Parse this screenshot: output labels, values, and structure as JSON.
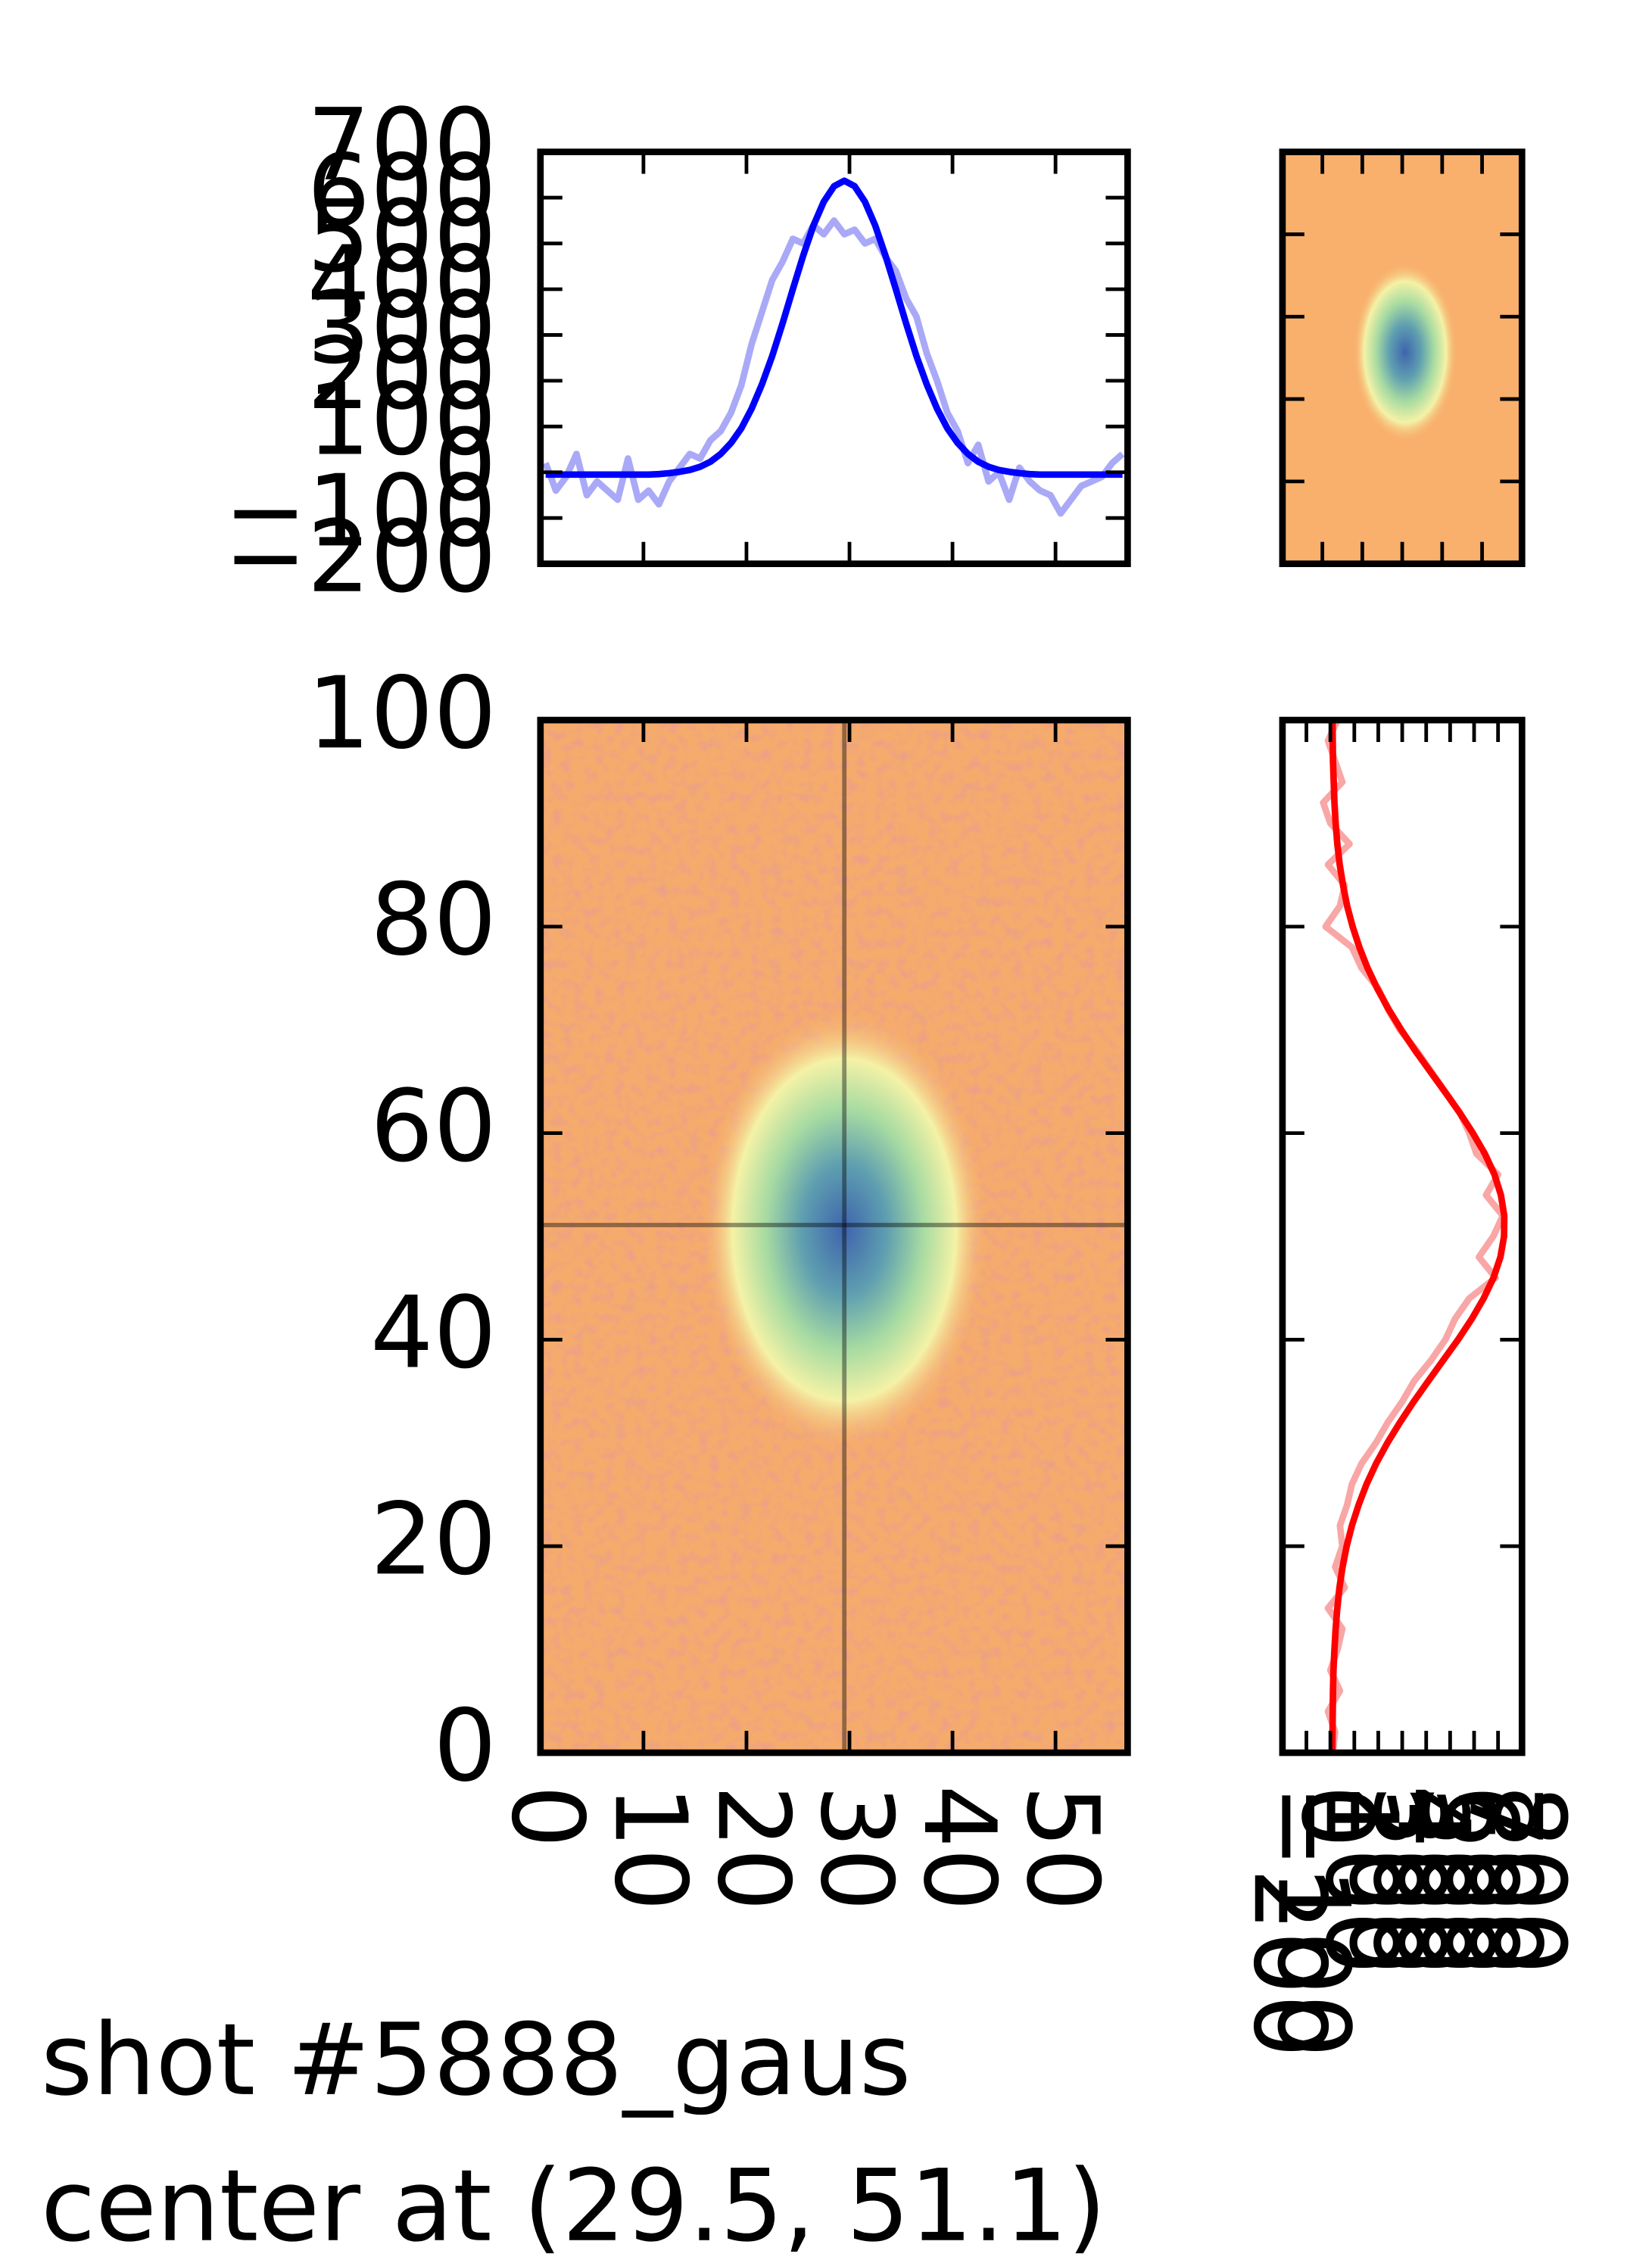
{
  "chart_data": [
    {
      "type": "heatmap",
      "annotation": [
        "shot #5888_gaus",
        "center at (29.5, 51.1)"
      ],
      "center_x": 29.5,
      "center_y": 51.1,
      "xlim": [
        0,
        57
      ],
      "ylim": [
        0,
        100
      ],
      "xticks": [
        0,
        10,
        20,
        30,
        40,
        50
      ],
      "yticks": [
        0,
        20,
        40,
        60,
        80,
        100
      ]
    },
    {
      "type": "line",
      "x": [
        0.5,
        1.5,
        2.5,
        3.5,
        4.5,
        5.5,
        6.5,
        7.5,
        8.5,
        9.5,
        10.5,
        11.5,
        12.5,
        13.5,
        14.5,
        15.5,
        16.5,
        17.5,
        18.5,
        19.5,
        20.5,
        21.5,
        22.5,
        23.5,
        24.5,
        25.5,
        26.5,
        27.5,
        28.5,
        29.5,
        30.5,
        31.5,
        32.5,
        33.5,
        34.5,
        35.5,
        36.5,
        37.5,
        38.5,
        39.5,
        40.5,
        41.5,
        42.5,
        43.5,
        44.5,
        45.5,
        46.5,
        47.5,
        48.5,
        49.5,
        50.5,
        51.5,
        52.5,
        53.5,
        54.5,
        55.5,
        56.5
      ],
      "series": [
        {
          "color": "#a9a9f7",
          "values": [
            20,
            -40,
            -10,
            40,
            -50,
            -20,
            -40,
            -60,
            30,
            -60,
            -40,
            -70,
            -20,
            10,
            40,
            30,
            70,
            90,
            130,
            190,
            280,
            350,
            420,
            460,
            510,
            500,
            540,
            520,
            550,
            520,
            530,
            500,
            510,
            470,
            440,
            380,
            340,
            260,
            200,
            130,
            90,
            20,
            60,
            -20,
            0,
            -60,
            10,
            -20,
            -40,
            -50,
            -90,
            -60,
            -30,
            -20,
            -10,
            20,
            40
          ]
        },
        {
          "color": "#0000ff",
          "values": [
            -5,
            -5,
            -5,
            -5,
            -5,
            -5,
            -5,
            -5,
            -5,
            -5,
            -5,
            -4,
            -2,
            1,
            5,
            12,
            23,
            40,
            64,
            96,
            139,
            192,
            254,
            325,
            400,
            473,
            539,
            591,
            625,
            637,
            625,
            591,
            539,
            473,
            400,
            325,
            254,
            192,
            139,
            96,
            64,
            40,
            23,
            12,
            5,
            1,
            -2,
            -4,
            -5,
            -5,
            -5,
            -5,
            -5,
            -5,
            -5,
            -5,
            -5
          ]
        }
      ],
      "xlim": [
        0,
        57
      ],
      "ylim": [
        -200,
        700
      ],
      "xticks": [
        0,
        10,
        20,
        30,
        40,
        50
      ],
      "yticks": [
        {
          "value": -200,
          "label": "−200"
        },
        {
          "value": -100,
          "label": "−100"
        },
        0,
        100,
        200,
        300,
        400,
        500,
        600,
        700
      ]
    },
    {
      "type": "line",
      "orientation": "horizontal",
      "y": [
        0,
        2,
        4,
        6,
        8,
        10,
        12,
        14,
        16,
        18,
        20,
        22,
        24,
        26,
        28,
        30,
        32,
        34,
        36,
        38,
        40,
        42,
        44,
        46,
        48,
        50,
        52,
        54,
        56,
        58,
        60,
        62,
        64,
        66,
        68,
        70,
        72,
        74,
        76,
        78,
        80,
        82,
        84,
        86,
        88,
        90,
        92,
        94,
        96,
        98,
        100
      ],
      "series": [
        {
          "color": "#f9a6a6",
          "values": [
            10,
            20,
            -10,
            40,
            0,
            30,
            50,
            -10,
            60,
            20,
            50,
            40,
            70,
            90,
            130,
            190,
            240,
            300,
            350,
            420,
            480,
            520,
            580,
            690,
            620,
            680,
            720,
            650,
            700,
            610,
            580,
            540,
            480,
            420,
            360,
            290,
            240,
            200,
            130,
            90,
            -20,
            40,
            60,
            -10,
            80,
            0,
            -30,
            50,
            20,
            -10,
            30
          ]
        },
        {
          "color": "#ff0000",
          "values": [
            8,
            9,
            10,
            11,
            13,
            17,
            22,
            29,
            38,
            51,
            68,
            90,
            118,
            151,
            191,
            238,
            291,
            348,
            409,
            471,
            533,
            590,
            640,
            681,
            710,
            725,
            726,
            712,
            685,
            645,
            595,
            539,
            478,
            416,
            354,
            296,
            243,
            196,
            155,
            121,
            93,
            70,
            53,
            39,
            29,
            22,
            17,
            14,
            11,
            10,
            9
          ]
        }
      ],
      "xlim": [
        -200,
        800
      ],
      "ylim": [
        0,
        100
      ],
      "xticks": [
        {
          "value": -200,
          "label": "−200"
        },
        {
          "value": -100,
          "label": "−100"
        },
        0,
        100,
        200,
        300,
        400,
        500,
        600,
        700,
        800
      ],
      "yticks": [
        0,
        20,
        40,
        60,
        80,
        100
      ]
    },
    {
      "type": "image"
    }
  ]
}
